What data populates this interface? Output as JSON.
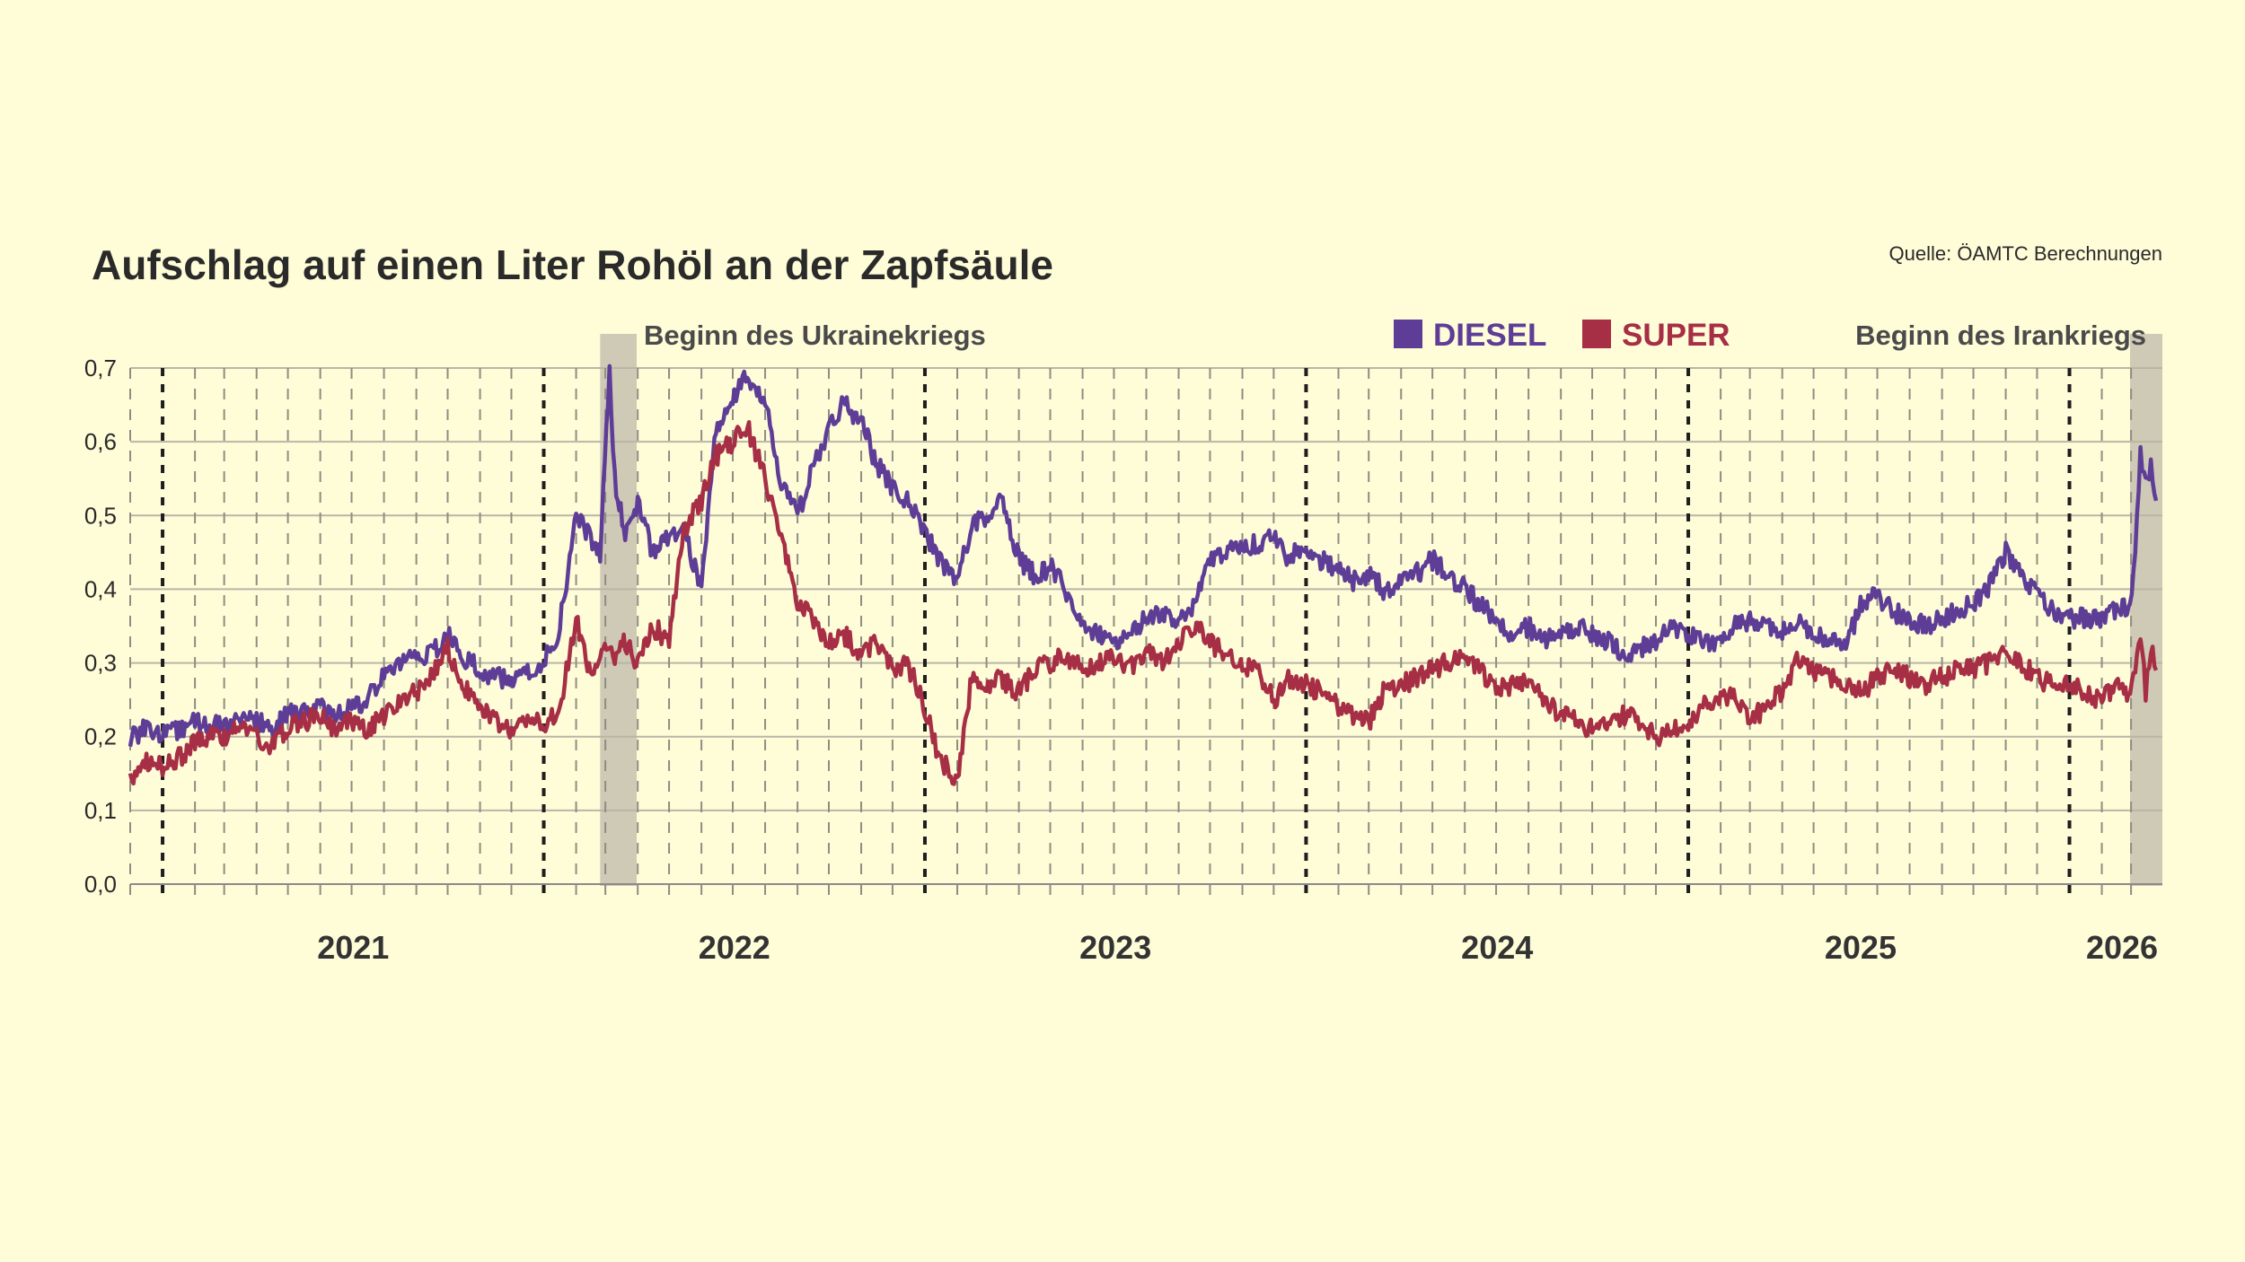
{
  "title": "Aufschlag auf einen Liter Rohöl an der Zapfsäule",
  "source": "Quelle: ÖAMTC Berechnungen",
  "annotations": [
    {
      "label": "Beginn des Ukrainekriegs",
      "start": "2022-02-24",
      "end": "2022-03-31"
    },
    {
      "label": "Beginn des Irankriegs",
      "start": "2026-02-28",
      "end": "2026-03-31"
    }
  ],
  "legend": [
    {
      "name": "DIESEL",
      "color": "#5e3d97"
    },
    {
      "name": "SUPER",
      "color": "#a62e45"
    }
  ],
  "chart_data": {
    "type": "line",
    "title": "Aufschlag auf einen Liter Rohöl an der Zapfsäule",
    "xlabel": "",
    "ylabel": "",
    "xlim": [
      "2020-12-01",
      "2026-03-31"
    ],
    "ylim": [
      0.0,
      0.7
    ],
    "yticks": [
      "0,0",
      "0,1",
      "0,2",
      "0,3",
      "0,4",
      "0,5",
      "0,6",
      "0,7"
    ],
    "year_labels": [
      "2021",
      "2022",
      "2023",
      "2024",
      "2025",
      "2026"
    ],
    "grid": true,
    "legend_position": "top-right",
    "series": [
      {
        "name": "DIESEL",
        "color": "#5e3d97",
        "x": [
          "2020-12-01",
          "2020-12-15",
          "2021-01-01",
          "2021-01-15",
          "2021-02-01",
          "2021-02-15",
          "2021-03-01",
          "2021-03-15",
          "2021-04-01",
          "2021-04-15",
          "2021-05-01",
          "2021-05-15",
          "2021-06-01",
          "2021-06-15",
          "2021-07-01",
          "2021-07-15",
          "2021-08-01",
          "2021-08-15",
          "2021-09-01",
          "2021-09-15",
          "2021-10-01",
          "2021-10-15",
          "2021-11-01",
          "2021-11-15",
          "2021-12-01",
          "2021-12-15",
          "2022-01-01",
          "2022-01-15",
          "2022-02-01",
          "2022-02-15",
          "2022-02-24",
          "2022-03-05",
          "2022-03-10",
          "2022-03-20",
          "2022-04-01",
          "2022-04-15",
          "2022-05-01",
          "2022-05-15",
          "2022-06-01",
          "2022-06-15",
          "2022-07-01",
          "2022-07-15",
          "2022-08-01",
          "2022-08-15",
          "2022-09-01",
          "2022-09-15",
          "2022-10-01",
          "2022-10-15",
          "2022-11-01",
          "2022-11-15",
          "2022-12-01",
          "2022-12-15",
          "2023-01-01",
          "2023-01-15",
          "2023-02-01",
          "2023-02-15",
          "2023-03-01",
          "2023-03-15",
          "2023-04-01",
          "2023-04-15",
          "2023-05-01",
          "2023-05-15",
          "2023-06-01",
          "2023-06-15",
          "2023-07-01",
          "2023-07-15",
          "2023-08-01",
          "2023-08-15",
          "2023-09-01",
          "2023-09-15",
          "2023-10-01",
          "2023-10-15",
          "2023-11-01",
          "2023-11-15",
          "2023-12-01",
          "2023-12-15",
          "2024-01-01",
          "2024-01-15",
          "2024-02-01",
          "2024-02-15",
          "2024-03-01",
          "2024-03-15",
          "2024-04-01",
          "2024-04-15",
          "2024-05-01",
          "2024-05-15",
          "2024-06-01",
          "2024-06-15",
          "2024-07-01",
          "2024-07-15",
          "2024-08-01",
          "2024-08-15",
          "2024-09-01",
          "2024-09-15",
          "2024-10-01",
          "2024-10-15",
          "2024-11-01",
          "2024-11-15",
          "2024-12-01",
          "2024-12-15",
          "2025-01-01",
          "2025-01-15",
          "2025-02-01",
          "2025-02-15",
          "2025-03-01",
          "2025-03-15",
          "2025-04-01",
          "2025-04-15",
          "2025-05-01",
          "2025-05-15",
          "2025-06-01",
          "2025-06-15",
          "2025-07-01",
          "2025-07-15",
          "2025-08-01",
          "2025-08-15",
          "2025-09-01",
          "2025-09-15",
          "2025-10-01",
          "2025-10-15",
          "2025-11-01",
          "2025-11-15",
          "2025-12-01",
          "2025-12-15",
          "2026-01-01",
          "2026-01-15",
          "2026-02-01",
          "2026-02-15",
          "2026-02-28",
          "2026-03-05",
          "2026-03-10",
          "2026-03-15",
          "2026-03-20",
          "2026-03-25"
        ],
        "values": [
          0.2,
          0.21,
          0.2,
          0.21,
          0.22,
          0.22,
          0.21,
          0.22,
          0.22,
          0.21,
          0.23,
          0.23,
          0.24,
          0.23,
          0.24,
          0.25,
          0.28,
          0.3,
          0.31,
          0.31,
          0.34,
          0.31,
          0.29,
          0.28,
          0.28,
          0.29,
          0.3,
          0.34,
          0.5,
          0.47,
          0.45,
          0.69,
          0.55,
          0.47,
          0.52,
          0.45,
          0.47,
          0.48,
          0.4,
          0.62,
          0.66,
          0.69,
          0.66,
          0.55,
          0.5,
          0.56,
          0.62,
          0.65,
          0.63,
          0.57,
          0.54,
          0.52,
          0.48,
          0.44,
          0.41,
          0.49,
          0.5,
          0.52,
          0.44,
          0.42,
          0.43,
          0.4,
          0.35,
          0.34,
          0.33,
          0.34,
          0.36,
          0.37,
          0.36,
          0.38,
          0.44,
          0.45,
          0.46,
          0.46,
          0.48,
          0.44,
          0.46,
          0.44,
          0.43,
          0.41,
          0.42,
          0.4,
          0.41,
          0.42,
          0.44,
          0.42,
          0.4,
          0.38,
          0.36,
          0.34,
          0.35,
          0.33,
          0.34,
          0.35,
          0.34,
          0.33,
          0.31,
          0.32,
          0.33,
          0.35,
          0.34,
          0.33,
          0.33,
          0.35,
          0.36,
          0.35,
          0.34,
          0.36,
          0.34,
          0.33,
          0.32,
          0.38,
          0.39,
          0.37,
          0.36,
          0.35,
          0.36,
          0.37,
          0.38,
          0.4,
          0.45,
          0.42,
          0.39,
          0.37,
          0.36,
          0.36,
          0.36,
          0.37,
          0.38,
          0.46,
          0.58,
          0.54,
          0.57,
          0.52
        ]
      },
      {
        "name": "SUPER",
        "color": "#a62e45",
        "x": [
          "2020-12-01",
          "2020-12-15",
          "2021-01-01",
          "2021-01-15",
          "2021-02-01",
          "2021-02-15",
          "2021-03-01",
          "2021-03-15",
          "2021-04-01",
          "2021-04-15",
          "2021-05-01",
          "2021-05-15",
          "2021-06-01",
          "2021-06-15",
          "2021-07-01",
          "2021-07-15",
          "2021-08-01",
          "2021-08-15",
          "2021-09-01",
          "2021-09-15",
          "2021-10-01",
          "2021-10-15",
          "2021-11-01",
          "2021-11-15",
          "2021-12-01",
          "2021-12-15",
          "2022-01-01",
          "2022-01-15",
          "2022-02-01",
          "2022-02-15",
          "2022-02-24",
          "2022-03-05",
          "2022-03-10",
          "2022-03-20",
          "2022-04-01",
          "2022-04-15",
          "2022-05-01",
          "2022-05-15",
          "2022-06-01",
          "2022-06-15",
          "2022-07-01",
          "2022-07-15",
          "2022-08-01",
          "2022-08-15",
          "2022-09-01",
          "2022-09-15",
          "2022-10-01",
          "2022-10-15",
          "2022-11-01",
          "2022-11-15",
          "2022-12-01",
          "2022-12-15",
          "2023-01-01",
          "2023-01-15",
          "2023-02-01",
          "2023-02-15",
          "2023-03-01",
          "2023-03-15",
          "2023-04-01",
          "2023-04-15",
          "2023-05-01",
          "2023-05-15",
          "2023-06-01",
          "2023-06-15",
          "2023-07-01",
          "2023-07-15",
          "2023-08-01",
          "2023-08-15",
          "2023-09-01",
          "2023-09-15",
          "2023-10-01",
          "2023-10-15",
          "2023-11-01",
          "2023-11-15",
          "2023-12-01",
          "2023-12-15",
          "2024-01-01",
          "2024-01-15",
          "2024-02-01",
          "2024-02-15",
          "2024-03-01",
          "2024-03-15",
          "2024-04-01",
          "2024-04-15",
          "2024-05-01",
          "2024-05-15",
          "2024-06-01",
          "2024-06-15",
          "2024-07-01",
          "2024-07-15",
          "2024-08-01",
          "2024-08-15",
          "2024-09-01",
          "2024-09-15",
          "2024-10-01",
          "2024-10-15",
          "2024-11-01",
          "2024-11-15",
          "2024-12-01",
          "2024-12-15",
          "2025-01-01",
          "2025-01-15",
          "2025-02-01",
          "2025-02-15",
          "2025-03-01",
          "2025-03-15",
          "2025-04-01",
          "2025-04-15",
          "2025-05-01",
          "2025-05-15",
          "2025-06-01",
          "2025-06-15",
          "2025-07-01",
          "2025-07-15",
          "2025-08-01",
          "2025-08-15",
          "2025-09-01",
          "2025-09-15",
          "2025-10-01",
          "2025-10-15",
          "2025-11-01",
          "2025-11-15",
          "2025-12-01",
          "2025-12-15",
          "2026-01-01",
          "2026-01-15",
          "2026-02-01",
          "2026-02-15",
          "2026-02-28",
          "2026-03-05",
          "2026-03-10",
          "2026-03-15",
          "2026-03-20",
          "2026-03-25"
        ],
        "values": [
          0.14,
          0.17,
          0.16,
          0.17,
          0.19,
          0.2,
          0.2,
          0.21,
          0.2,
          0.19,
          0.21,
          0.22,
          0.23,
          0.21,
          0.22,
          0.21,
          0.23,
          0.25,
          0.26,
          0.28,
          0.32,
          0.27,
          0.24,
          0.22,
          0.21,
          0.22,
          0.22,
          0.23,
          0.36,
          0.28,
          0.3,
          0.33,
          0.3,
          0.33,
          0.3,
          0.35,
          0.33,
          0.48,
          0.52,
          0.58,
          0.6,
          0.62,
          0.55,
          0.48,
          0.38,
          0.36,
          0.33,
          0.34,
          0.31,
          0.33,
          0.29,
          0.3,
          0.24,
          0.17,
          0.14,
          0.28,
          0.27,
          0.28,
          0.26,
          0.29,
          0.3,
          0.31,
          0.29,
          0.3,
          0.31,
          0.29,
          0.32,
          0.3,
          0.33,
          0.35,
          0.33,
          0.31,
          0.3,
          0.29,
          0.25,
          0.28,
          0.27,
          0.26,
          0.24,
          0.23,
          0.22,
          0.26,
          0.27,
          0.28,
          0.29,
          0.3,
          0.31,
          0.29,
          0.26,
          0.27,
          0.28,
          0.25,
          0.23,
          0.22,
          0.21,
          0.22,
          0.23,
          0.22,
          0.2,
          0.21,
          0.22,
          0.24,
          0.25,
          0.26,
          0.22,
          0.24,
          0.26,
          0.3,
          0.29,
          0.28,
          0.27,
          0.26,
          0.28,
          0.29,
          0.28,
          0.27,
          0.28,
          0.29,
          0.29,
          0.3,
          0.32,
          0.3,
          0.28,
          0.27,
          0.27,
          0.26,
          0.25,
          0.27,
          0.26,
          0.28,
          0.34,
          0.26,
          0.32,
          0.29
        ]
      }
    ]
  }
}
